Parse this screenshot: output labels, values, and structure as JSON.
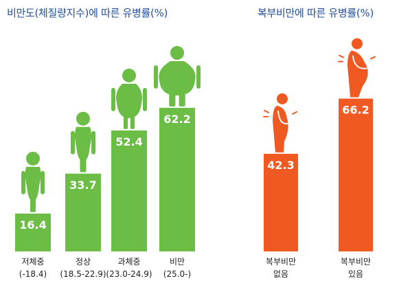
{
  "chart_data": [
    {
      "type": "bar",
      "title": "비만도(체질량지수)에 따른 유병률(%)",
      "categories": [
        {
          "name": "저체중",
          "range": "(-18.4)"
        },
        {
          "name": "정상",
          "range": "(18.5-22.9)"
        },
        {
          "name": "과체중",
          "range": "(23.0-24.9)"
        },
        {
          "name": "비만",
          "range": "(25.0-)"
        }
      ],
      "values": [
        16.4,
        33.7,
        52.4,
        62.2
      ],
      "value_labels": [
        "16.4",
        "33.7",
        "52.4",
        "62.2"
      ],
      "ylim": [
        0,
        100
      ],
      "grid": false,
      "bar_color": "#6cbd45",
      "icon": "person-silhouette-icon"
    },
    {
      "type": "bar",
      "title": "복부비만에 따른 유병률(%)",
      "categories": [
        {
          "name": "복부비만",
          "range": "없음"
        },
        {
          "name": "복부비만",
          "range": "있음"
        }
      ],
      "values": [
        42.3,
        66.2
      ],
      "value_labels": [
        "42.3",
        "66.2"
      ],
      "ylim": [
        0,
        100
      ],
      "grid": false,
      "bar_color": "#f05a22",
      "icon": "belly-silhouette-icon"
    }
  ],
  "colors": {
    "title": "#1f4e9c",
    "green": "#6cbd45",
    "orange": "#f05a22"
  }
}
